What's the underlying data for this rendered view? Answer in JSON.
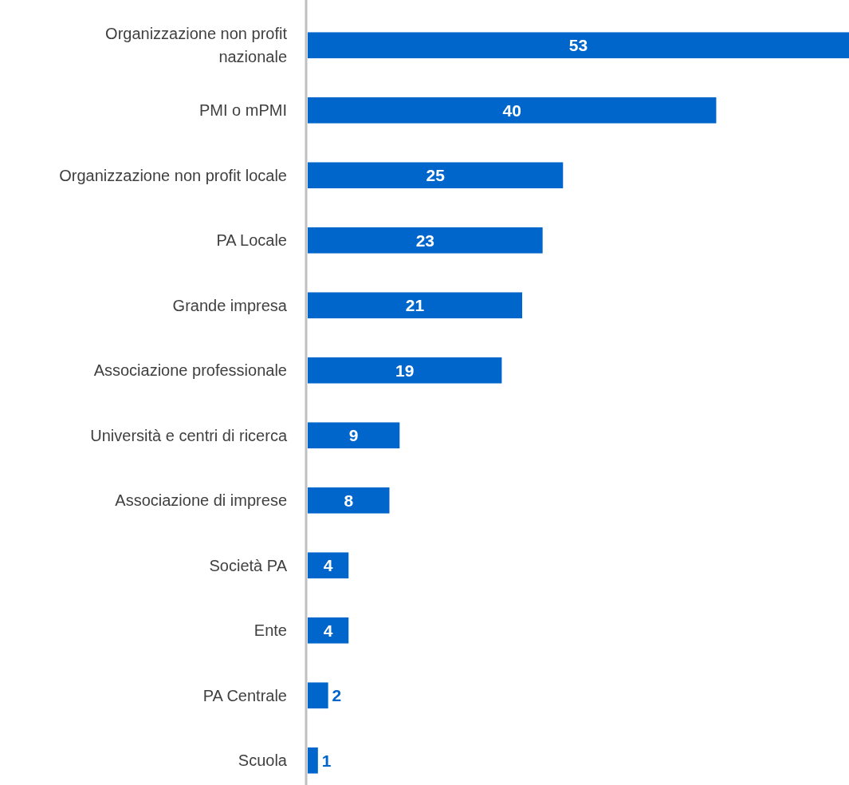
{
  "chart_data": {
    "type": "bar",
    "orientation": "horizontal",
    "categories": [
      "Organizzazione non profit nazionale",
      "PMI o mPMI",
      "Organizzazione non profit locale",
      "PA Locale",
      "Grande impresa",
      "Associazione professionale",
      "Università e centri di ricerca",
      "Associazione di imprese",
      "Società PA",
      "Ente",
      "PA Centrale",
      "Scuola"
    ],
    "values": [
      53,
      40,
      25,
      23,
      21,
      19,
      9,
      8,
      4,
      4,
      2,
      1
    ],
    "color": "#0066cc",
    "data_labels": true
  }
}
